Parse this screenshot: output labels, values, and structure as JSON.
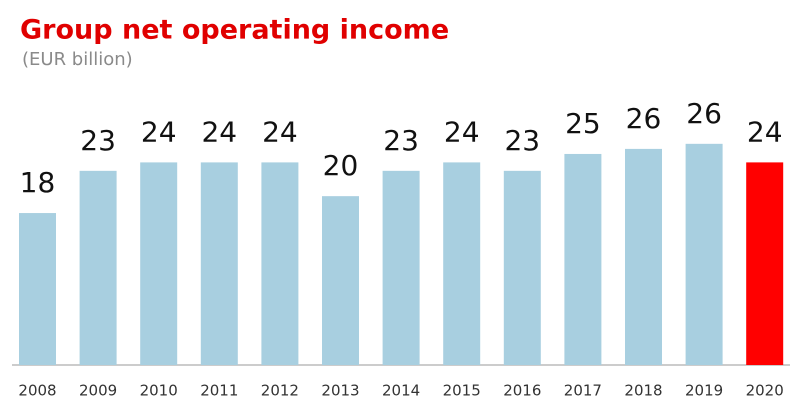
{
  "chart_data": {
    "type": "bar",
    "title": "Group net operating income",
    "subtitle": "(EUR billion)",
    "categories": [
      "2008",
      "2009",
      "2010",
      "2011",
      "2012",
      "2013",
      "2014",
      "2015",
      "2016",
      "2017",
      "2018",
      "2019",
      "2020"
    ],
    "values": [
      18,
      23,
      24,
      24,
      24,
      20,
      23,
      24,
      23,
      25,
      25.6,
      26.2,
      24
    ],
    "value_labels": [
      "18",
      "23",
      "24",
      "24",
      "24",
      "20",
      "23",
      "24",
      "23",
      "25",
      "26",
      "26",
      "24"
    ],
    "colors": [
      "#a8cfe0",
      "#a8cfe0",
      "#a8cfe0",
      "#a8cfe0",
      "#a8cfe0",
      "#a8cfe0",
      "#a8cfe0",
      "#a8cfe0",
      "#a8cfe0",
      "#a8cfe0",
      "#a8cfe0",
      "#a8cfe0",
      "#ff0000"
    ],
    "ylim": [
      0,
      43
    ]
  }
}
